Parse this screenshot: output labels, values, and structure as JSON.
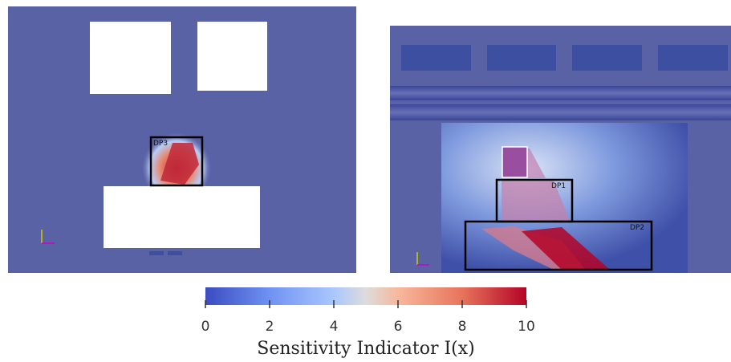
{
  "panels": [
    {
      "labels": [
        "DP3"
      ]
    },
    {
      "labels": [
        "DP1",
        "DP2"
      ]
    }
  ],
  "colorbar": {
    "label": "Sensitivity Indicator I(x)",
    "lim": [
      0,
      10
    ],
    "ticks": [
      0,
      2,
      4,
      6,
      8,
      10
    ]
  }
}
